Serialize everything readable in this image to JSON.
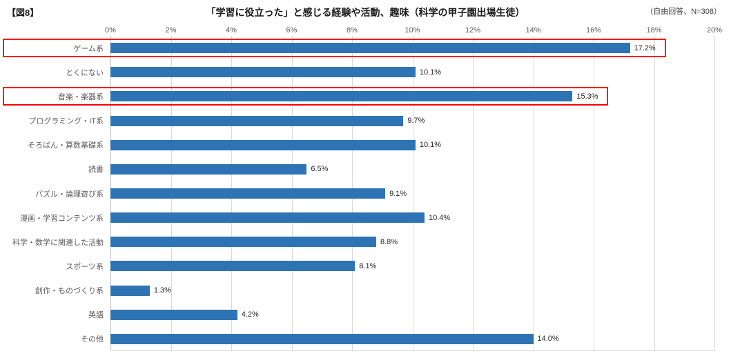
{
  "header": {
    "figure_label": "【図8】",
    "title": "「学習に役立った」と感じる経験や活動、趣味（科学の甲子園出場生徒）",
    "note": "（自由回答、N=308）"
  },
  "chart_data": {
    "type": "bar",
    "orientation": "horizontal",
    "title": "「学習に役立った」と感じる経験や活動、趣味（科学の甲子園出場生徒）",
    "categories": [
      "ゲーム系",
      "とくにない",
      "音楽・楽器系",
      "プログラミング・IT系",
      "そろばん・算数基礎系",
      "読書",
      "パズル・論理遊び系",
      "漫画・学習コンテンツ系",
      "科学・数学に関連した活動",
      "スポーツ系",
      "創作・ものづくり系",
      "英語",
      "その他"
    ],
    "values": [
      17.2,
      10.1,
      15.3,
      9.7,
      10.1,
      6.5,
      9.1,
      10.4,
      8.8,
      8.1,
      1.3,
      4.2,
      14.0
    ],
    "value_labels": [
      "17.2%",
      "10.1%",
      "15.3%",
      "9.7%",
      "10.1%",
      "6.5%",
      "9.1%",
      "10.4%",
      "8.8%",
      "8.1%",
      "1.3%",
      "4.2%",
      "14.0%"
    ],
    "highlighted_indices": [
      0,
      2
    ],
    "xlim": [
      0,
      20
    ],
    "x_ticks": [
      "0%",
      "2%",
      "4%",
      "6%",
      "8%",
      "10%",
      "12%",
      "14%",
      "16%",
      "18%",
      "20%"
    ],
    "xlabel": "",
    "ylabel": "",
    "grid": true,
    "legend": false,
    "bar_color": "#2E74B5",
    "highlight_color": "#FF0000"
  }
}
